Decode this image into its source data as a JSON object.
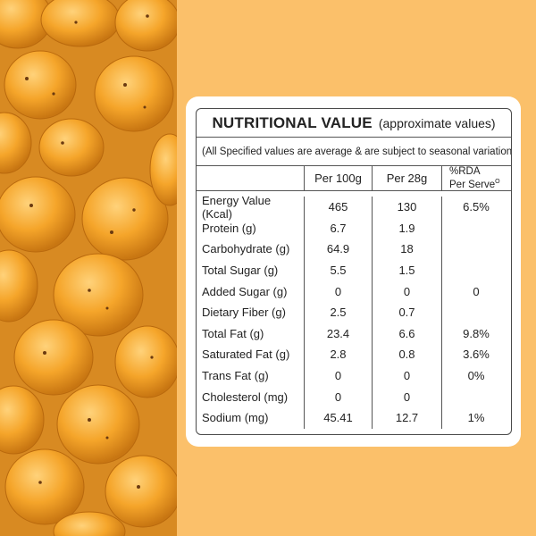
{
  "photo": {
    "subject": "roasted makhana snack"
  },
  "colors": {
    "background": "#fbc06a",
    "card": "#ffffff",
    "border": "#4a4a4a"
  },
  "table": {
    "title": "NUTRITIONAL VALUE",
    "subtitle": "(approximate values)",
    "note": "(All Specified values are average & are subject to seasonal variation)",
    "headers": [
      "",
      "Per 100g",
      "Per 28g",
      "%RDA",
      "Per Serve"
    ],
    "header_sup": "O",
    "rows": [
      {
        "name": "Energy Value (Kcal)",
        "per100": "465",
        "per28": "130",
        "rda": "6.5%"
      },
      {
        "name": "Protein (g)",
        "per100": "6.7",
        "per28": "1.9",
        "rda": ""
      },
      {
        "name": "Carbohydrate (g)",
        "per100": "64.9",
        "per28": "18",
        "rda": ""
      },
      {
        "name": "Total Sugar (g)",
        "per100": "5.5",
        "per28": "1.5",
        "rda": ""
      },
      {
        "name": "Added Sugar (g)",
        "per100": "0",
        "per28": "0",
        "rda": "0"
      },
      {
        "name": "Dietary Fiber (g)",
        "per100": "2.5",
        "per28": "0.7",
        "rda": ""
      },
      {
        "name": "Total Fat (g)",
        "per100": "23.4",
        "per28": "6.6",
        "rda": "9.8%"
      },
      {
        "name": "Saturated Fat (g)",
        "per100": "2.8",
        "per28": "0.8",
        "rda": "3.6%"
      },
      {
        "name": "Trans Fat (g)",
        "per100": "0",
        "per28": "0",
        "rda": "0%"
      },
      {
        "name": "Cholesterol (mg)",
        "per100": "0",
        "per28": "0",
        "rda": ""
      },
      {
        "name": "Sodium (mg)",
        "per100": "45.41",
        "per28": "12.7",
        "rda": "1%"
      }
    ]
  }
}
